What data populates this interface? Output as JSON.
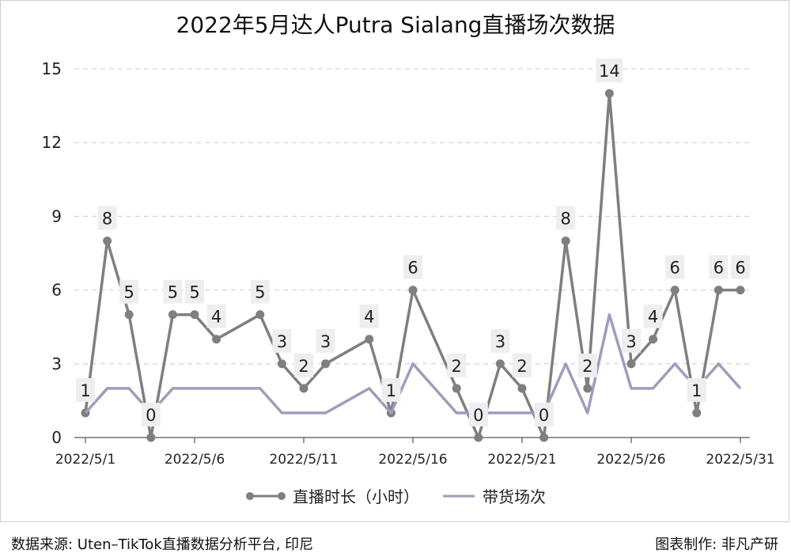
{
  "chart_data": {
    "type": "line",
    "title": "2022年5月达人Putra Sialang直播场次数据",
    "xlabel": "",
    "ylabel": "",
    "ylim": [
      0,
      15
    ],
    "yticks": [
      0,
      3,
      6,
      9,
      12,
      15
    ],
    "grid": true,
    "legend_position": "bottom",
    "x": [
      "2022/5/1",
      "2022/5/2",
      "2022/5/3",
      "2022/5/4",
      "2022/5/5",
      "2022/5/6",
      "2022/5/7",
      "2022/5/8",
      "2022/5/9",
      "2022/5/10",
      "2022/5/11",
      "2022/5/12",
      "2022/5/13",
      "2022/5/14",
      "2022/5/15",
      "2022/5/16",
      "2022/5/17",
      "2022/5/18",
      "2022/5/19",
      "2022/5/20",
      "2022/5/21",
      "2022/5/22",
      "2022/5/23",
      "2022/5/24",
      "2022/5/25",
      "2022/5/26",
      "2022/5/27",
      "2022/5/28",
      "2022/5/29",
      "2022/5/30",
      "2022/5/31"
    ],
    "xtick_labels": [
      "2022/5/1",
      "2022/5/6",
      "2022/5/11",
      "2022/5/16",
      "2022/5/21",
      "2022/5/26",
      "2022/5/31"
    ],
    "series": [
      {
        "name": "直播时长（小时）",
        "color": "#7f7f7f",
        "markers": true,
        "data_labels": true,
        "values": [
          1,
          8,
          5,
          0,
          5,
          5,
          4,
          null,
          5,
          3,
          2,
          3,
          null,
          4,
          1,
          6,
          null,
          2,
          0,
          3,
          2,
          0,
          8,
          2,
          14,
          3,
          4,
          6,
          1,
          6,
          6
        ]
      },
      {
        "name": "带货场次",
        "color": "#a39bbd",
        "markers": false,
        "data_labels": false,
        "values": [
          1,
          2,
          2,
          1,
          2,
          2,
          2,
          2,
          2,
          1,
          1,
          1,
          null,
          2,
          1,
          3,
          null,
          1,
          1,
          1,
          1,
          1,
          3,
          1,
          5,
          2,
          2,
          3,
          2,
          3,
          2
        ]
      }
    ]
  },
  "footer": {
    "source": "数据来源: Uten–TikTok直播数据分析平台, 印尼",
    "credit": "图表制作: 非凡产研"
  }
}
